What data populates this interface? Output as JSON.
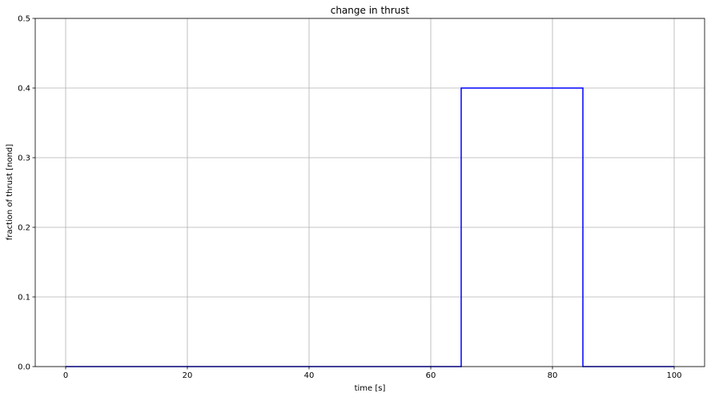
{
  "chart_data": {
    "type": "line",
    "title": "change in thrust",
    "xlabel": "time [s]",
    "ylabel": "fraction of thrust [nond]",
    "xlim": [
      -5,
      105
    ],
    "ylim": [
      0,
      0.5
    ],
    "xticks": [
      0,
      20,
      40,
      60,
      80,
      100
    ],
    "xtick_labels": [
      "0",
      "20",
      "40",
      "60",
      "80",
      "100"
    ],
    "yticks": [
      0.0,
      0.1,
      0.2,
      0.3,
      0.4,
      0.5
    ],
    "ytick_labels": [
      "0.0",
      "0.1",
      "0.2",
      "0.3",
      "0.4",
      "0.5"
    ],
    "grid": true,
    "series": [
      {
        "color": "#0000ff",
        "x": [
          0,
          65,
          65,
          85,
          85,
          100
        ],
        "y": [
          0,
          0,
          0.4,
          0.4,
          0,
          0
        ]
      }
    ]
  }
}
